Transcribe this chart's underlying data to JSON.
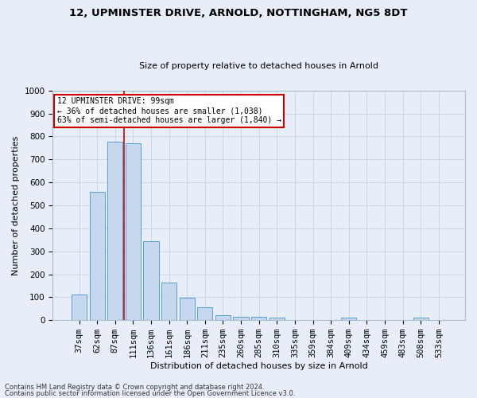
{
  "title": "12, UPMINSTER DRIVE, ARNOLD, NOTTINGHAM, NG5 8DT",
  "subtitle": "Size of property relative to detached houses in Arnold",
  "xlabel": "Distribution of detached houses by size in Arnold",
  "ylabel": "Number of detached properties",
  "categories": [
    "37sqm",
    "62sqm",
    "87sqm",
    "111sqm",
    "136sqm",
    "161sqm",
    "186sqm",
    "211sqm",
    "235sqm",
    "260sqm",
    "285sqm",
    "310sqm",
    "335sqm",
    "359sqm",
    "384sqm",
    "409sqm",
    "434sqm",
    "459sqm",
    "483sqm",
    "508sqm",
    "533sqm"
  ],
  "values": [
    113,
    558,
    778,
    770,
    345,
    165,
    98,
    55,
    20,
    14,
    13,
    10,
    0,
    0,
    0,
    10,
    0,
    0,
    0,
    10,
    0
  ],
  "bar_color": "#c5d8ed",
  "bar_edge_color": "#5a9fd4",
  "vline_x": 2.5,
  "annotation_line1": "12 UPMINSTER DRIVE: 99sqm",
  "annotation_line2": "← 36% of detached houses are smaller (1,038)",
  "annotation_line3": "63% of semi-detached houses are larger (1,840) →",
  "annotation_box_color": "#ffffff",
  "annotation_box_edge": "#cc0000",
  "vline_color": "#cc0000",
  "ylim": [
    0,
    1000
  ],
  "yticks": [
    0,
    100,
    200,
    300,
    400,
    500,
    600,
    700,
    800,
    900,
    1000
  ],
  "grid_color": "#ccd6e8",
  "bg_color": "#e8eef8",
  "footer1": "Contains HM Land Registry data © Crown copyright and database right 2024.",
  "footer2": "Contains public sector information licensed under the Open Government Licence v3.0.",
  "title_fontsize": 9.5,
  "subtitle_fontsize": 8,
  "ylabel_fontsize": 8,
  "xlabel_fontsize": 8,
  "tick_fontsize": 7.5,
  "annot_fontsize": 7,
  "footer_fontsize": 6
}
